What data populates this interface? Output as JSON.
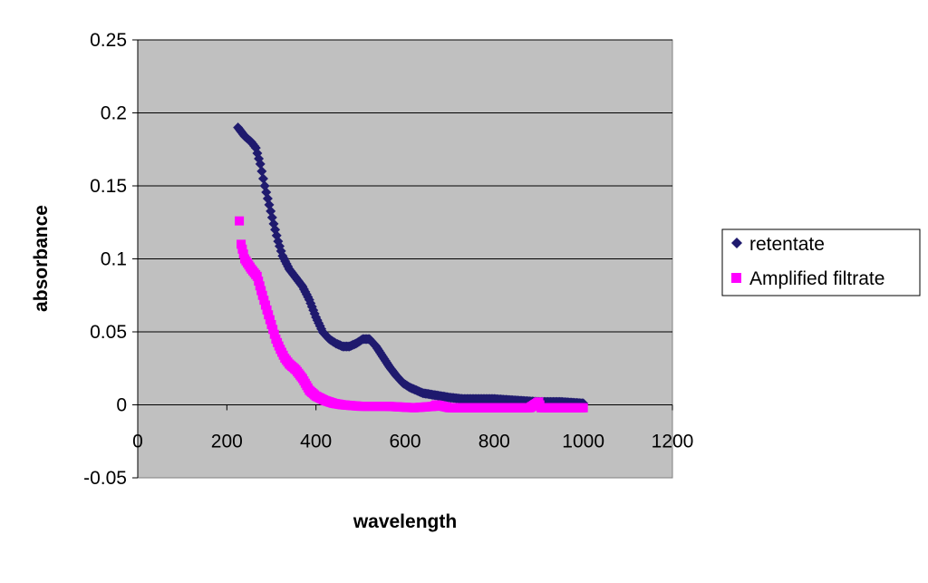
{
  "chart_data": {
    "type": "scatter",
    "title": "",
    "xlabel": "wavelength",
    "ylabel": "absorbance",
    "xlim": [
      0,
      1200
    ],
    "ylim": [
      -0.05,
      0.25
    ],
    "xticks": [
      "0",
      "200",
      "400",
      "600",
      "800",
      "1000",
      "1200"
    ],
    "yticks": [
      "0.25",
      "0.2",
      "0.15",
      "0.1",
      "0.05",
      "0",
      "-0.05"
    ],
    "grid": "horizontal",
    "legend_position": "right",
    "plot_background": "#c0c0c0",
    "series": [
      {
        "name": "retentate",
        "marker": "diamond",
        "color": "#1f1a6e",
        "points": [
          [
            225,
            0.19
          ],
          [
            240,
            0.184
          ],
          [
            255,
            0.18
          ],
          [
            265,
            0.176
          ],
          [
            275,
            0.165
          ],
          [
            285,
            0.15
          ],
          [
            295,
            0.137
          ],
          [
            305,
            0.124
          ],
          [
            315,
            0.112
          ],
          [
            325,
            0.102
          ],
          [
            340,
            0.093
          ],
          [
            355,
            0.087
          ],
          [
            370,
            0.081
          ],
          [
            385,
            0.072
          ],
          [
            400,
            0.06
          ],
          [
            415,
            0.05
          ],
          [
            430,
            0.045
          ],
          [
            445,
            0.042
          ],
          [
            460,
            0.04
          ],
          [
            475,
            0.04
          ],
          [
            490,
            0.042
          ],
          [
            505,
            0.045
          ],
          [
            520,
            0.045
          ],
          [
            535,
            0.04
          ],
          [
            550,
            0.033
          ],
          [
            565,
            0.026
          ],
          [
            580,
            0.02
          ],
          [
            595,
            0.015
          ],
          [
            610,
            0.012
          ],
          [
            625,
            0.01
          ],
          [
            640,
            0.008
          ],
          [
            660,
            0.007
          ],
          [
            680,
            0.006
          ],
          [
            700,
            0.005
          ],
          [
            730,
            0.004
          ],
          [
            760,
            0.004
          ],
          [
            800,
            0.004
          ],
          [
            850,
            0.003
          ],
          [
            900,
            0.002
          ],
          [
            950,
            0.002
          ],
          [
            1000,
            0.001
          ]
        ]
      },
      {
        "name": "Amplified filtrate",
        "marker": "square",
        "color": "#ff00ff",
        "points": [
          [
            228,
            0.126
          ],
          [
            232,
            0.11
          ],
          [
            240,
            0.1
          ],
          [
            255,
            0.093
          ],
          [
            268,
            0.088
          ],
          [
            280,
            0.075
          ],
          [
            290,
            0.065
          ],
          [
            300,
            0.055
          ],
          [
            310,
            0.045
          ],
          [
            320,
            0.038
          ],
          [
            330,
            0.032
          ],
          [
            340,
            0.028
          ],
          [
            355,
            0.024
          ],
          [
            370,
            0.018
          ],
          [
            385,
            0.01
          ],
          [
            400,
            0.006
          ],
          [
            420,
            0.003
          ],
          [
            440,
            0.001
          ],
          [
            460,
            0.0
          ],
          [
            500,
            -0.001
          ],
          [
            560,
            -0.001
          ],
          [
            620,
            -0.002
          ],
          [
            665,
            -0.001
          ],
          [
            670,
            0.0
          ],
          [
            700,
            -0.002
          ],
          [
            760,
            -0.002
          ],
          [
            820,
            -0.002
          ],
          [
            880,
            -0.002
          ],
          [
            900,
            0.002
          ],
          [
            905,
            -0.002
          ],
          [
            950,
            -0.002
          ],
          [
            1000,
            -0.002
          ]
        ]
      }
    ]
  }
}
